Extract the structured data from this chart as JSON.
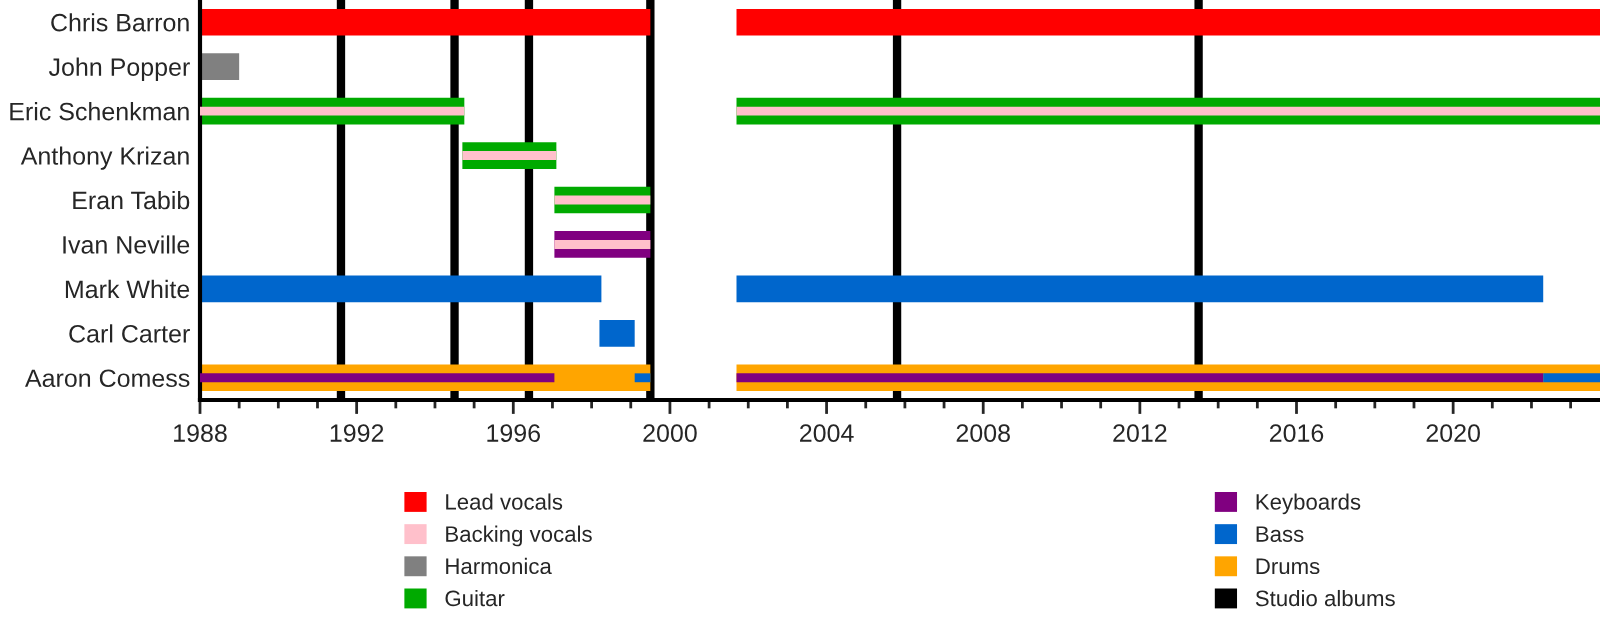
{
  "chart_data": {
    "type": "bar",
    "orientation": "horizontal",
    "legend": "bottom",
    "grid": false,
    "categories": [
      "Chris Barron",
      "John Popper",
      "Eric Schenkman",
      "Anthony Krizan",
      "Eran Tabib",
      "Ivan Neville",
      "Mark White",
      "Carl Carter",
      "Aaron Comess"
    ],
    "series": [
      {
        "name": "Lead vocals",
        "color": "#ff0000",
        "base": [
          1988,
          null,
          null,
          null,
          null,
          null,
          null,
          null,
          null
        ],
        "values": [
          11.5,
          null,
          null,
          null,
          null,
          null,
          null,
          null,
          null
        ]
      },
      {
        "color": "#ff0000",
        "base": [
          2001.7,
          null,
          null,
          null,
          null,
          null,
          null,
          null,
          null
        ],
        "values": [
          22.05,
          null,
          null,
          null,
          null,
          null,
          null,
          null,
          null
        ]
      },
      {
        "name": "Backing vocals",
        "color": "#ffc0cb",
        "base": [
          null,
          null,
          1988,
          1994.7,
          1997.05,
          1997.05,
          null,
          null,
          null
        ],
        "values": [
          null,
          null,
          6.75,
          2.4,
          2.45,
          2.45,
          null,
          null,
          null
        ]
      },
      {
        "color": "#ffc0cb",
        "base": [
          null,
          null,
          2001.7,
          null,
          null,
          null,
          null,
          null,
          null
        ],
        "values": [
          null,
          null,
          22.05,
          null,
          null,
          null,
          null,
          null,
          null
        ]
      },
      {
        "name": "Harmonica",
        "color": "#808080",
        "base": [
          null,
          1988,
          null,
          null,
          null,
          null,
          null,
          null,
          null
        ],
        "values": [
          null,
          1.0,
          null,
          null,
          null,
          null,
          null,
          null,
          null
        ]
      },
      {
        "name": "Guitar",
        "color": "#00aa00",
        "base": [
          null,
          null,
          1988,
          1994.7,
          1997.05,
          null,
          null,
          null,
          null
        ],
        "values": [
          null,
          null,
          6.75,
          2.4,
          2.45,
          null,
          null,
          null,
          null
        ]
      },
      {
        "color": "#00aa00",
        "base": [
          null,
          null,
          2001.7,
          null,
          null,
          null,
          null,
          null,
          null
        ],
        "values": [
          null,
          null,
          22.05,
          null,
          null,
          null,
          null,
          null,
          null
        ]
      },
      {
        "name": "Keyboards",
        "color": "#800080",
        "base": [
          null,
          null,
          null,
          null,
          null,
          1997.05,
          null,
          null,
          1988
        ],
        "values": [
          null,
          null,
          null,
          null,
          null,
          2.45,
          null,
          null,
          9.05
        ]
      },
      {
        "color": "#800080",
        "base": [
          null,
          null,
          null,
          null,
          null,
          null,
          null,
          null,
          2001.7
        ],
        "values": [
          null,
          null,
          null,
          null,
          null,
          null,
          null,
          null,
          20.6
        ]
      },
      {
        "name": "Bass",
        "color": "#0066cc",
        "base": [
          null,
          null,
          null,
          null,
          null,
          null,
          1988,
          1998.2,
          1999.1
        ],
        "values": [
          null,
          null,
          null,
          null,
          null,
          null,
          10.25,
          0.9,
          0.4
        ]
      },
      {
        "color": "#0066cc",
        "base": [
          null,
          null,
          null,
          null,
          null,
          null,
          2001.7,
          null,
          2022.3
        ],
        "values": [
          null,
          null,
          null,
          null,
          null,
          null,
          20.6,
          null,
          1.45
        ]
      },
      {
        "name": "Drums",
        "color": "#ffa500",
        "base": [
          null,
          null,
          null,
          null,
          null,
          null,
          null,
          null,
          1988
        ],
        "values": [
          null,
          null,
          null,
          null,
          null,
          null,
          null,
          null,
          11.5
        ]
      },
      {
        "color": "#ffa500",
        "base": [
          null,
          null,
          null,
          null,
          null,
          null,
          null,
          null,
          2001.7
        ],
        "values": [
          null,
          null,
          null,
          null,
          null,
          null,
          null,
          null,
          22.05
        ]
      }
    ],
    "ref_lines": [
      {
        "axis": "x",
        "value": 1991.6,
        "label": "Studio albums",
        "color": "#000000"
      },
      {
        "axis": "x",
        "value": 1994.5,
        "color": "#000000"
      },
      {
        "axis": "x",
        "value": 1996.4,
        "color": "#000000"
      },
      {
        "axis": "x",
        "value": 1999.5,
        "color": "#000000"
      },
      {
        "axis": "x",
        "value": 2005.8,
        "color": "#000000"
      },
      {
        "axis": "x",
        "value": 2013.5,
        "color": "#000000"
      }
    ],
    "xlim": [
      1988,
      2023.75
    ],
    "xticks": [
      1988,
      {
        "value": 1989,
        "label": null
      },
      {
        "value": 1990,
        "label": null
      },
      {
        "value": 1991,
        "label": null
      },
      1992,
      {
        "value": 1993,
        "label": null
      },
      {
        "value": 1994,
        "label": null
      },
      {
        "value": 1995,
        "label": null
      },
      1996,
      {
        "value": 1997,
        "label": null
      },
      {
        "value": 1998,
        "label": null
      },
      {
        "value": 1999,
        "label": null
      },
      2000,
      {
        "value": 2001,
        "label": null
      },
      {
        "value": 2002,
        "label": null
      },
      {
        "value": 2003,
        "label": null
      },
      2004,
      {
        "value": 2005,
        "label": null
      },
      {
        "value": 2006,
        "label": null
      },
      {
        "value": 2007,
        "label": null
      },
      2008,
      {
        "value": 2009,
        "label": null
      },
      {
        "value": 2010,
        "label": null
      },
      {
        "value": 2011,
        "label": null
      },
      2012,
      {
        "value": 2013,
        "label": null
      },
      {
        "value": 2014,
        "label": null
      },
      {
        "value": 2015,
        "label": null
      },
      2016,
      {
        "value": 2017,
        "label": null
      },
      {
        "value": 2018,
        "label": null
      },
      {
        "value": 2019,
        "label": null
      },
      2020,
      {
        "value": 2021,
        "label": null
      },
      {
        "value": 2022,
        "label": null
      },
      {
        "value": 2023,
        "label": null
      }
    ]
  }
}
